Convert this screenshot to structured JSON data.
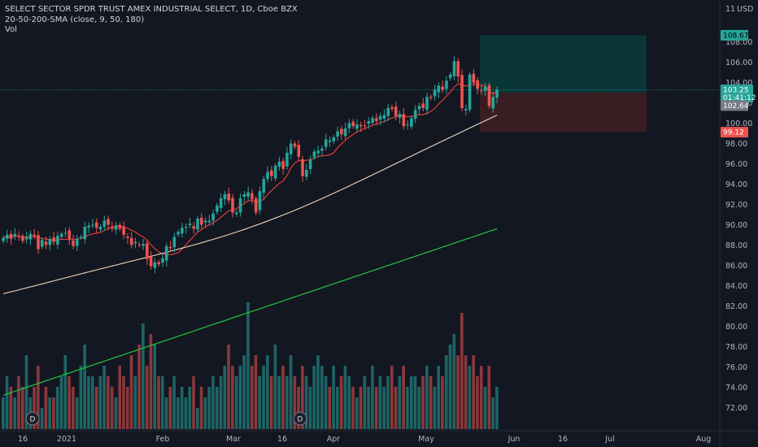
{
  "legend": {
    "symbol_line": "SELECT SECTOR SPDR TRUST AMEX INDUSTRIAL SELECT, 1D, Cboe BZX",
    "ma_line": "20-50-200-SMA (close, 9, 50, 180)",
    "vol_line": "Vol"
  },
  "price_scale": {
    "currency": "USD",
    "indicator_count": "11",
    "labels": [
      "108.00",
      "106.00",
      "104.00",
      "102.00",
      "100.00",
      "98.00",
      "96.00",
      "94.00",
      "92.00",
      "90.00",
      "88.00",
      "86.00",
      "84.00",
      "82.00",
      "80.00",
      "78.00",
      "76.00",
      "74.00",
      "72.00"
    ]
  },
  "price_tags": {
    "target": "108.67",
    "current_price": "103.25",
    "countdown": "01:41:12",
    "prev": "102.64",
    "stop": "99.12"
  },
  "time_scale": {
    "labels": [
      "16",
      "2021",
      "Feb",
      "Mar",
      "16",
      "Apr",
      "May",
      "Jun",
      "16",
      "Jul",
      "Aug"
    ]
  },
  "dividend_markers": [
    "D",
    "D"
  ],
  "colors": {
    "background": "#131722",
    "up": "#26a69a",
    "down": "#ef5350",
    "sma_fast": "#e53935",
    "sma_mid": "#f3d6b8",
    "sma_slow": "#22c53a",
    "target_zone": "#0b3a3a",
    "stop_zone": "#3d1f24"
  },
  "chart_data": {
    "type": "candlestick",
    "symbol": "SELECT SECTOR SPDR TRUST AMEX INDUSTRIAL SELECT",
    "interval": "1D",
    "ylim": [
      70.5,
      111.5
    ],
    "closes": [
      88.7,
      89.0,
      88.6,
      89.1,
      88.9,
      88.4,
      88.8,
      89.1,
      88.9,
      87.6,
      88.5,
      88.0,
      88.6,
      88.3,
      88.9,
      89.1,
      89.2,
      88.6,
      87.9,
      88.6,
      88.8,
      89.8,
      89.9,
      90.0,
      89.7,
      89.8,
      90.4,
      90.0,
      89.6,
      89.9,
      89.6,
      89.0,
      88.7,
      88.0,
      88.3,
      88.0,
      88.1,
      86.6,
      85.9,
      86.3,
      86.1,
      86.7,
      87.9,
      87.7,
      88.8,
      89.3,
      89.7,
      89.8,
      90.1,
      89.6,
      90.6,
      90.0,
      90.4,
      90.4,
      91.1,
      91.9,
      92.6,
      93.0,
      92.4,
      91.2,
      91.2,
      92.6,
      93.0,
      93.2,
      92.5,
      91.2,
      93.3,
      94.5,
      95.2,
      94.8,
      95.8,
      96.2,
      95.5,
      97.1,
      98.0,
      97.7,
      96.7,
      94.8,
      95.4,
      96.4,
      97.2,
      97.3,
      97.5,
      98.4,
      98.3,
      98.6,
      99.2,
      98.9,
      99.5,
      100.0,
      99.7,
      99.9,
      99.7,
      99.7,
      100.2,
      100.5,
      100.2,
      100.7,
      100.8,
      101.5,
      101.4,
      100.7,
      100.9,
      99.7,
      99.9,
      100.5,
      101.3,
      101.7,
      101.5,
      102.6,
      102.5,
      103.3,
      103.7,
      103.3,
      104.2,
      104.8,
      106.1,
      104.6,
      101.5,
      101.4,
      104.8,
      104.0,
      103.4,
      103.2,
      103.6,
      101.7,
      102.6,
      103.3
    ],
    "sma_fast_note": "9-period",
    "sma_mid_note": "50-period",
    "sma_slow_note": "180-period",
    "volume_relative": [
      0.3,
      0.5,
      0.4,
      0.3,
      0.5,
      0.4,
      0.7,
      0.3,
      0.4,
      0.6,
      0.2,
      0.4,
      0.3,
      0.3,
      0.4,
      0.5,
      0.7,
      0.5,
      0.4,
      0.3,
      0.6,
      0.8,
      0.5,
      0.5,
      0.4,
      0.5,
      0.6,
      0.5,
      0.4,
      0.3,
      0.6,
      0.5,
      0.4,
      0.7,
      0.5,
      0.8,
      1.0,
      0.6,
      0.9,
      0.8,
      0.5,
      0.5,
      0.3,
      0.4,
      0.5,
      0.3,
      0.4,
      0.3,
      0.4,
      0.5,
      0.2,
      0.4,
      0.3,
      0.4,
      0.5,
      0.4,
      0.5,
      0.6,
      0.8,
      0.6,
      0.5,
      0.6,
      0.7,
      1.2,
      0.6,
      0.7,
      0.5,
      0.6,
      0.7,
      0.5,
      0.8,
      0.5,
      0.6,
      0.5,
      0.7,
      0.5,
      0.4,
      0.6,
      0.5,
      0.4,
      0.6,
      0.7,
      0.6,
      0.5,
      0.4,
      0.6,
      0.4,
      0.5,
      0.6,
      0.5,
      0.4,
      0.3,
      0.4,
      0.5,
      0.4,
      0.6,
      0.4,
      0.5,
      0.4,
      0.5,
      0.6,
      0.4,
      0.5,
      0.6,
      0.4,
      0.5,
      0.5,
      0.4,
      0.5,
      0.6,
      0.5,
      0.4,
      0.6,
      0.5,
      0.7,
      0.8,
      0.9,
      0.7,
      1.1,
      0.7,
      0.6,
      0.7,
      0.5,
      0.6,
      0.4,
      0.6,
      0.3,
      0.4
    ],
    "risk_reward": {
      "target": 108.67,
      "entry": 103.0,
      "stop": 99.12
    }
  }
}
